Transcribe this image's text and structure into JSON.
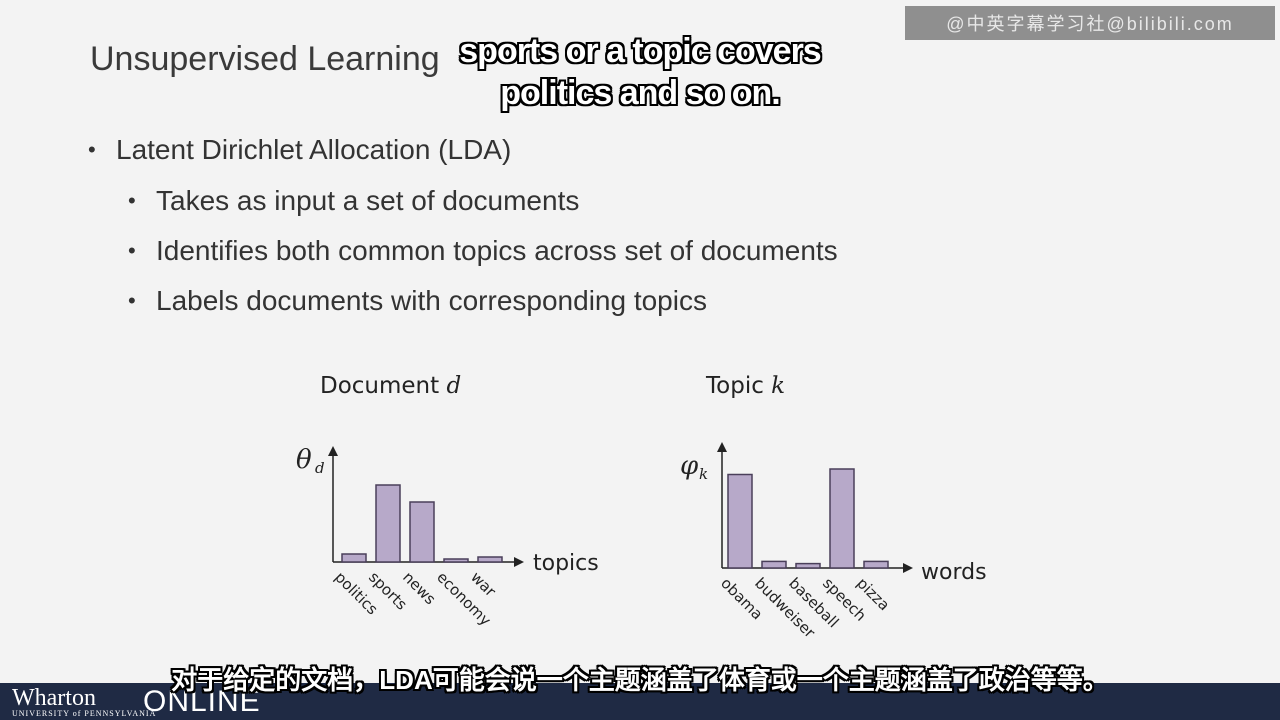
{
  "slide": {
    "title": "Unsupervised Learning",
    "bullets": [
      "Latent Dirichlet Allocation (LDA)",
      "Takes as input a set of documents",
      "Identifies both common topics across set of documents",
      "Labels documents with corresponding topics"
    ]
  },
  "watermark": "@中英字幕学习社@bilibili.com",
  "subtitles": {
    "english_line1": "sports or a topic covers",
    "english_line2": "politics and so on.",
    "chinese": "对于给定的文档，LDA可能会说一个主题涵盖了体育或一个主题涵盖了政治等等。"
  },
  "footer": {
    "logo_text": "Wharton",
    "logo_subtext": "UNIVERSITY of PENNSYLVANIA",
    "online_text": "ONLINE",
    "background_color": "#1f2a44"
  },
  "chart_data": [
    {
      "type": "bar",
      "title_text": "Document",
      "title_var": "d",
      "y_symbol": "θ",
      "y_subscript": "d",
      "xlabel": "topics",
      "categories": [
        "politics",
        "sports",
        "news",
        "economy",
        "war"
      ],
      "values": [
        0.08,
        0.77,
        0.6,
        0.03,
        0.05
      ],
      "ylim": [
        0,
        1
      ],
      "bar_color": "#b7a9c9"
    },
    {
      "type": "bar",
      "title_text": "Topic",
      "title_var": "k",
      "y_symbol": "φ",
      "y_subscript": "k",
      "xlabel": "words",
      "categories": [
        "obama",
        "budweiser",
        "baseball",
        "speech",
        "pizza"
      ],
      "values": [
        0.85,
        0.06,
        0.04,
        0.9,
        0.06
      ],
      "ylim": [
        0,
        1
      ],
      "bar_color": "#b7a9c9"
    }
  ]
}
